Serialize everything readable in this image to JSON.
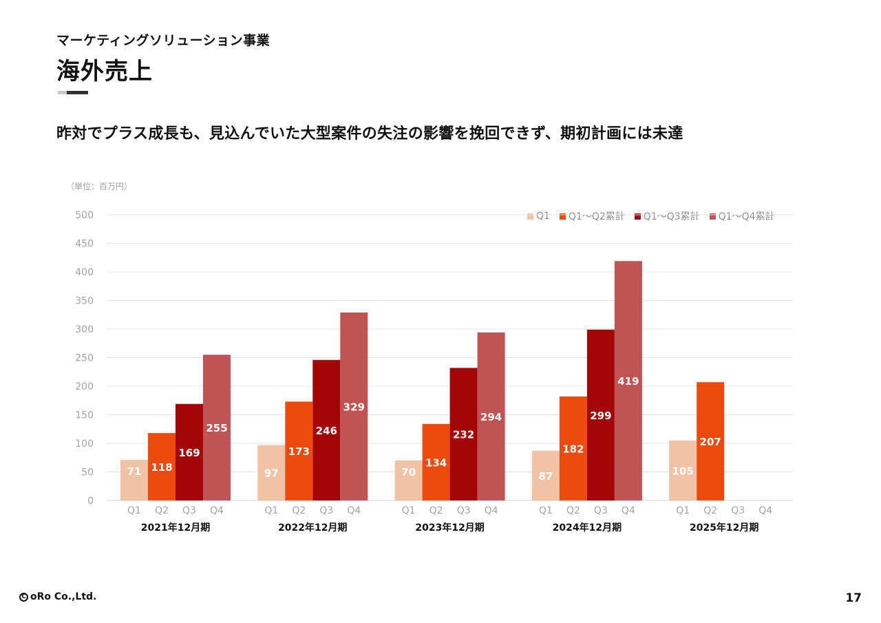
{
  "header": {
    "section": "マーケティングソリューション事業",
    "title": "海外売上",
    "headline": "昨対でプラス成長も、見込んでいた大型案件の失注の影響を挽回できず、期初計画には未達"
  },
  "footer": {
    "copyright_symbol": "C",
    "copyright": "oRo Co.,Ltd.",
    "page_number": "17"
  },
  "chart_data": {
    "type": "bar",
    "unit_label": "（単位：百万円）",
    "ylim": [
      0,
      500
    ],
    "yticks": [
      0,
      50,
      100,
      150,
      200,
      250,
      300,
      350,
      400,
      450,
      500
    ],
    "grid": true,
    "legend_position": "top-right",
    "groups": [
      "2021年12月期",
      "2022年12月期",
      "2023年12月期",
      "2024年12月期",
      "2025年12月期"
    ],
    "quarter_labels": [
      "Q1",
      "Q2",
      "Q3",
      "Q4"
    ],
    "series": [
      {
        "name": "Q1",
        "color": "#f2c2a5",
        "values": [
          71,
          97,
          70,
          87,
          105
        ]
      },
      {
        "name": "Q1〜Q2累計",
        "color": "#ee4a0c",
        "values": [
          118,
          173,
          134,
          182,
          207
        ]
      },
      {
        "name": "Q1〜Q3累計",
        "color": "#a30606",
        "values": [
          169,
          246,
          232,
          299,
          null
        ]
      },
      {
        "name": "Q1〜Q4累計",
        "color": "#c05454",
        "values": [
          255,
          329,
          294,
          419,
          null
        ]
      }
    ]
  }
}
